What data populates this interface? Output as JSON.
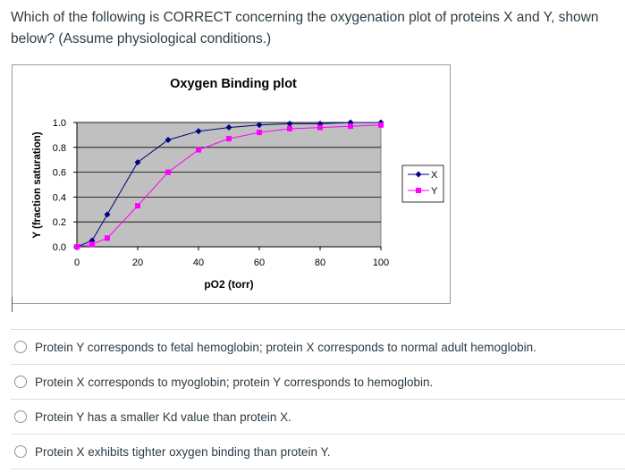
{
  "question": {
    "text": "Which of the following is CORRECT concerning the oxygenation plot of proteins X and Y, shown below? (Assume physiological conditions.)"
  },
  "chart_data": {
    "type": "line",
    "title": "Oxygen Binding plot",
    "xlabel": "pO2 (torr)",
    "ylabel": "Y (fraction saturation)",
    "xlim": [
      0,
      100
    ],
    "ylim": [
      0,
      1.0
    ],
    "xticks": [
      0,
      20,
      40,
      60,
      80,
      100
    ],
    "yticks": [
      0.0,
      0.2,
      0.4,
      0.6,
      0.8,
      1.0
    ],
    "xtick_labels": [
      "0",
      "20",
      "40",
      "60",
      "80",
      "100"
    ],
    "ytick_labels": [
      "0.0",
      "0.2",
      "0.4",
      "0.6",
      "0.8",
      "1.0"
    ],
    "plot_area_color": "#c0c0c0",
    "grid": true,
    "legend_position": "right",
    "series": [
      {
        "name": "X",
        "color": "#000080",
        "marker": "diamond",
        "x": [
          0,
          5,
          10,
          20,
          30,
          40,
          50,
          60,
          70,
          80,
          90,
          100
        ],
        "y": [
          0.0,
          0.05,
          0.26,
          0.68,
          0.86,
          0.93,
          0.96,
          0.98,
          0.99,
          0.99,
          1.0,
          1.0
        ]
      },
      {
        "name": "Y",
        "color": "#ff00ff",
        "marker": "square",
        "x": [
          0,
          5,
          10,
          20,
          30,
          40,
          50,
          60,
          70,
          80,
          90,
          100
        ],
        "y": [
          0.0,
          0.02,
          0.07,
          0.33,
          0.6,
          0.78,
          0.87,
          0.92,
          0.95,
          0.96,
          0.97,
          0.98
        ]
      }
    ]
  },
  "answers": [
    {
      "label": "Protein Y corresponds to fetal hemoglobin; protein X corresponds to normal adult hemoglobin."
    },
    {
      "label": "Protein X corresponds to myoglobin; protein Y corresponds to hemoglobin."
    },
    {
      "label": "Protein Y has a smaller Kd value than protein X."
    },
    {
      "label": "Protein X exhibits tighter oxygen binding than protein Y."
    }
  ]
}
